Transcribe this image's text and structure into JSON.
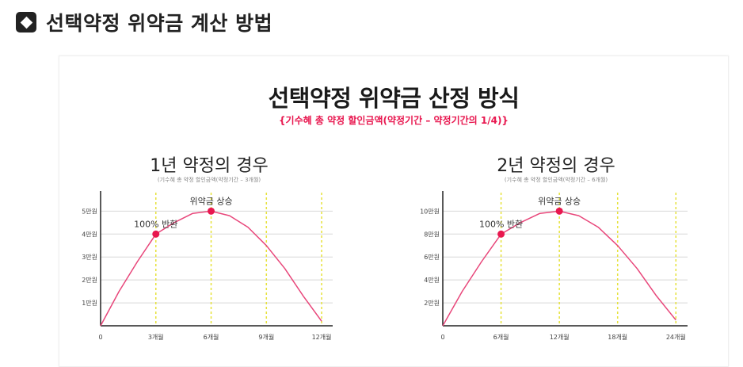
{
  "heading": {
    "text": "선택약정 위약금 계산 방법",
    "icon": "diamond-square-icon"
  },
  "card": {
    "title": "선택약정 위약금 산정 방식",
    "subtitle": "{기수혜 총 약정 할인금액(약정기간 – 약정기간의 1/4)}"
  },
  "colors": {
    "curve": "#e8467a",
    "point": "#e8174f",
    "guide": "#e6e23a",
    "grid": "#d8d8d8",
    "axis": "#222222"
  },
  "chart_data": [
    {
      "type": "line",
      "title": "1년 약정의 경우",
      "note": "(기수혜 총 약정 할인금액(약정기간 – 3개월)",
      "x_ticks": [
        {
          "x": 0,
          "label": "0"
        },
        {
          "x": 3,
          "label": "3개월"
        },
        {
          "x": 6,
          "label": "6개월"
        },
        {
          "x": 9,
          "label": "9개월"
        },
        {
          "x": 12,
          "label": "12개월"
        }
      ],
      "y_ticks": [
        {
          "y": 1,
          "label": "1만원"
        },
        {
          "y": 2,
          "label": "2만원"
        },
        {
          "y": 3,
          "label": "3만원"
        },
        {
          "y": 4,
          "label": "4만원"
        },
        {
          "y": 5,
          "label": "5만원"
        }
      ],
      "xlim": [
        0,
        12.6
      ],
      "ylim": [
        0,
        5.6
      ],
      "series": [
        {
          "x": [
            0,
            1,
            2,
            3,
            4,
            5,
            6,
            7,
            8,
            9,
            10,
            11,
            12
          ],
          "values": [
            0,
            1.5,
            2.8,
            4.0,
            4.5,
            4.9,
            5.0,
            4.8,
            4.3,
            3.5,
            2.5,
            1.3,
            0.2
          ]
        }
      ],
      "points": [
        {
          "x": 3,
          "y": 4,
          "label": "100% 반환"
        },
        {
          "x": 6,
          "y": 5,
          "label": "위약금 상승"
        }
      ],
      "guides": [
        3,
        6,
        9,
        12
      ]
    },
    {
      "type": "line",
      "title": "2년 약정의 경우",
      "note": "(기수혜 총 약정 할인금액(약정기간 – 6개월)",
      "x_ticks": [
        {
          "x": 0,
          "label": "0"
        },
        {
          "x": 6,
          "label": "6개월"
        },
        {
          "x": 12,
          "label": "12개월"
        },
        {
          "x": 18,
          "label": "18개월"
        },
        {
          "x": 24,
          "label": "24개월"
        }
      ],
      "y_ticks": [
        {
          "y": 2,
          "label": "2만원"
        },
        {
          "y": 4,
          "label": "4만원"
        },
        {
          "y": 6,
          "label": "6만원"
        },
        {
          "y": 8,
          "label": "8만원"
        },
        {
          "y": 10,
          "label": "10만원"
        }
      ],
      "xlim": [
        0,
        25.2
      ],
      "ylim": [
        0,
        11.2
      ],
      "series": [
        {
          "x": [
            0,
            2,
            4,
            6,
            8,
            10,
            12,
            14,
            16,
            18,
            20,
            22,
            24
          ],
          "values": [
            0,
            3.0,
            5.6,
            8.0,
            9.0,
            9.8,
            10.0,
            9.6,
            8.6,
            7.0,
            5.0,
            2.6,
            0.5
          ]
        }
      ],
      "points": [
        {
          "x": 6,
          "y": 8,
          "label": "100% 반환"
        },
        {
          "x": 12,
          "y": 10,
          "label": "위약금 상승"
        }
      ],
      "guides": [
        6,
        12,
        18,
        24
      ]
    }
  ]
}
